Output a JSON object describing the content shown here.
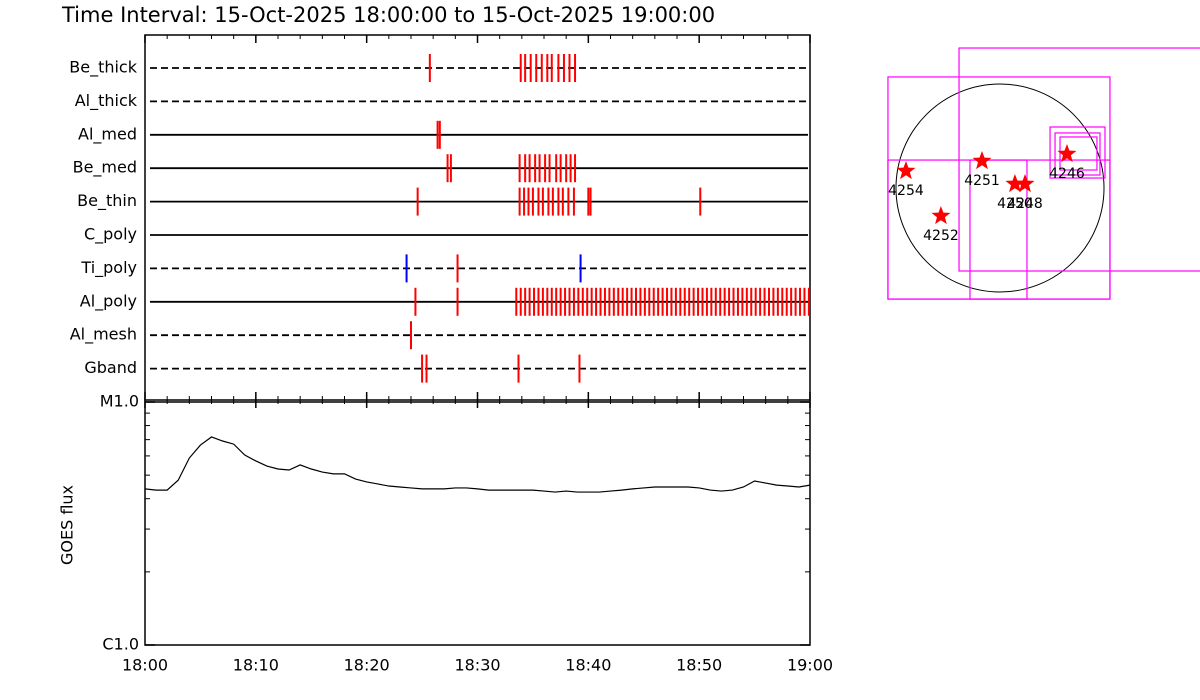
{
  "chart_data": [
    {
      "type": "event",
      "title": "Time Interval: 15-Oct-2025 18:00:00 to 15-Oct-2025 19:00:00",
      "xlim": [
        0,
        60
      ],
      "xticks": [
        {
          "value": 0,
          "label": "18:00"
        },
        {
          "value": 10,
          "label": "18:10"
        },
        {
          "value": 20,
          "label": "18:20"
        },
        {
          "value": 30,
          "label": "18:30"
        },
        {
          "value": 40,
          "label": "18:40"
        },
        {
          "value": 50,
          "label": "18:50"
        },
        {
          "value": 60,
          "label": "19:00"
        }
      ],
      "rows": [
        {
          "name": "Be_thick",
          "style": "dashed",
          "events": [
            {
              "color": "#ff0000",
              "values": [
                25.7,
                33.9,
                34.3,
                34.8,
                35.3,
                35.8,
                36.3,
                36.7,
                37.3,
                37.8,
                38.3,
                38.8
              ]
            }
          ]
        },
        {
          "name": "Al_thick",
          "style": "dashed",
          "events": []
        },
        {
          "name": "Al_med",
          "style": "solid",
          "events": [
            {
              "color": "#ff0000",
              "values": [
                26.4,
                26.6
              ]
            }
          ]
        },
        {
          "name": "Be_med",
          "style": "solid",
          "events": [
            {
              "color": "#ff0000",
              "values": [
                27.3,
                27.6,
                33.8,
                34.3,
                34.7,
                35.2,
                35.6,
                36.1,
                36.5,
                37.1,
                37.5,
                38.0,
                38.4,
                38.8
              ]
            }
          ]
        },
        {
          "name": "Be_thin",
          "style": "solid",
          "events": [
            {
              "color": "#ff0000",
              "values": [
                24.6,
                33.8,
                34.2,
                34.6,
                35.0,
                35.5,
                35.9,
                36.4,
                36.8,
                37.3,
                37.7,
                38.2,
                38.7,
                40.0,
                40.2,
                50.1
              ]
            }
          ]
        },
        {
          "name": "C_poly",
          "style": "solid",
          "events": []
        },
        {
          "name": "Ti_poly",
          "style": "dashed",
          "events": [
            {
              "color": "#0000ff",
              "values": [
                23.6,
                39.3
              ]
            },
            {
              "color": "#ff0000",
              "values": [
                28.2
              ]
            }
          ]
        },
        {
          "name": "Al_poly",
          "style": "solid",
          "events": [
            {
              "color": "#ff0000",
              "values": [
                24.4,
                28.2,
                33.5,
                33.9,
                34.3,
                34.7,
                35.1,
                35.5,
                35.9,
                36.3,
                36.7,
                37.1,
                37.5,
                37.9,
                38.3,
                38.7,
                39.1,
                39.5,
                39.9,
                40.3,
                40.7,
                41.1,
                41.5,
                41.9,
                42.3,
                42.7,
                43.1,
                43.5,
                43.9,
                44.3,
                44.7,
                45.1,
                45.5,
                45.9,
                46.3,
                46.7,
                47.1,
                47.5,
                47.9,
                48.3,
                48.7,
                49.1,
                49.5,
                49.9,
                50.3,
                50.7,
                51.1,
                51.5,
                51.9,
                52.3,
                52.7,
                53.1,
                53.5,
                53.9,
                54.3,
                54.7,
                55.1,
                55.5,
                55.9,
                56.3,
                56.7,
                57.1,
                57.5,
                57.9,
                58.3,
                58.7,
                59.1,
                59.5,
                59.9
              ]
            }
          ]
        },
        {
          "name": "Al_mesh",
          "style": "dashed",
          "events": [
            {
              "color": "#ff0000",
              "values": [
                24.0
              ]
            }
          ]
        },
        {
          "name": "Gband",
          "style": "dashed",
          "events": [
            {
              "color": "#ff0000",
              "values": [
                25.0,
                25.4,
                33.7,
                39.2
              ]
            }
          ]
        }
      ]
    },
    {
      "type": "line",
      "ylabel": "GOES flux",
      "log_scale": true,
      "color": "#000000",
      "xlim": [
        0,
        60
      ],
      "ylim": [
        1e-06,
        1e-05
      ],
      "yticks": [
        {
          "value": 1e-06,
          "label": "C1.0"
        },
        {
          "value": 1e-05,
          "label": "M1.0"
        }
      ],
      "x": [
        0,
        1,
        2,
        3,
        4,
        5,
        6,
        7,
        8,
        9,
        10,
        11,
        12,
        13,
        14,
        15,
        16,
        17,
        18,
        19,
        20,
        21,
        22,
        23,
        24,
        25,
        26,
        27,
        28,
        29,
        30,
        31,
        32,
        33,
        34,
        35,
        36,
        37,
        38,
        39,
        40,
        41,
        42,
        43,
        44,
        45,
        46,
        47,
        48,
        49,
        50,
        51,
        52,
        53,
        54,
        55,
        56,
        57,
        58,
        59,
        60
      ],
      "values": [
        4.39e-06,
        4.34e-06,
        4.34e-06,
        4.77e-06,
        5.88e-06,
        6.65e-06,
        7.18e-06,
        6.91e-06,
        6.71e-06,
        6.05e-06,
        5.72e-06,
        5.45e-06,
        5.3e-06,
        5.25e-06,
        5.51e-06,
        5.3e-06,
        5.15e-06,
        5.06e-06,
        5.06e-06,
        4.82e-06,
        4.69e-06,
        4.6e-06,
        4.51e-06,
        4.47e-06,
        4.43e-06,
        4.39e-06,
        4.39e-06,
        4.39e-06,
        4.43e-06,
        4.43e-06,
        4.39e-06,
        4.34e-06,
        4.34e-06,
        4.34e-06,
        4.34e-06,
        4.34e-06,
        4.3e-06,
        4.26e-06,
        4.3e-06,
        4.26e-06,
        4.26e-06,
        4.26e-06,
        4.3e-06,
        4.34e-06,
        4.39e-06,
        4.43e-06,
        4.47e-06,
        4.47e-06,
        4.47e-06,
        4.47e-06,
        4.43e-06,
        4.34e-06,
        4.3e-06,
        4.34e-06,
        4.47e-06,
        4.73e-06,
        4.64e-06,
        4.55e-06,
        4.51e-06,
        4.47e-06,
        4.55e-06
      ]
    },
    {
      "type": "map",
      "xlim": [
        -1126,
        1846
      ],
      "ylim": [
        -1126,
        1366
      ],
      "disk_radius": 960,
      "disk_color": "#000000",
      "box_color": "#ff00ff",
      "marker_color": "#ff0000",
      "boxes": [
        [
          -1034,
          -1025,
          1015,
          1025
        ],
        [
          -378,
          -766,
          2000,
          1292
        ],
        [
          -1034,
          -1025,
          249,
          258
        ],
        [
          -277,
          -1025,
          1015,
          258
        ],
        [
          462,
          92,
          969,
          563
        ],
        [
          508,
          120,
          923,
          508
        ],
        [
          554,
          166,
          895,
          471
        ]
      ],
      "labels": [
        "4254",
        "4251",
        "4250",
        "4248",
        "4246",
        "4252"
      ],
      "x": [
        -868,
        -166,
        138,
        231,
        618,
        -545
      ],
      "y": [
        157,
        249,
        37,
        37,
        314,
        -258
      ]
    }
  ]
}
